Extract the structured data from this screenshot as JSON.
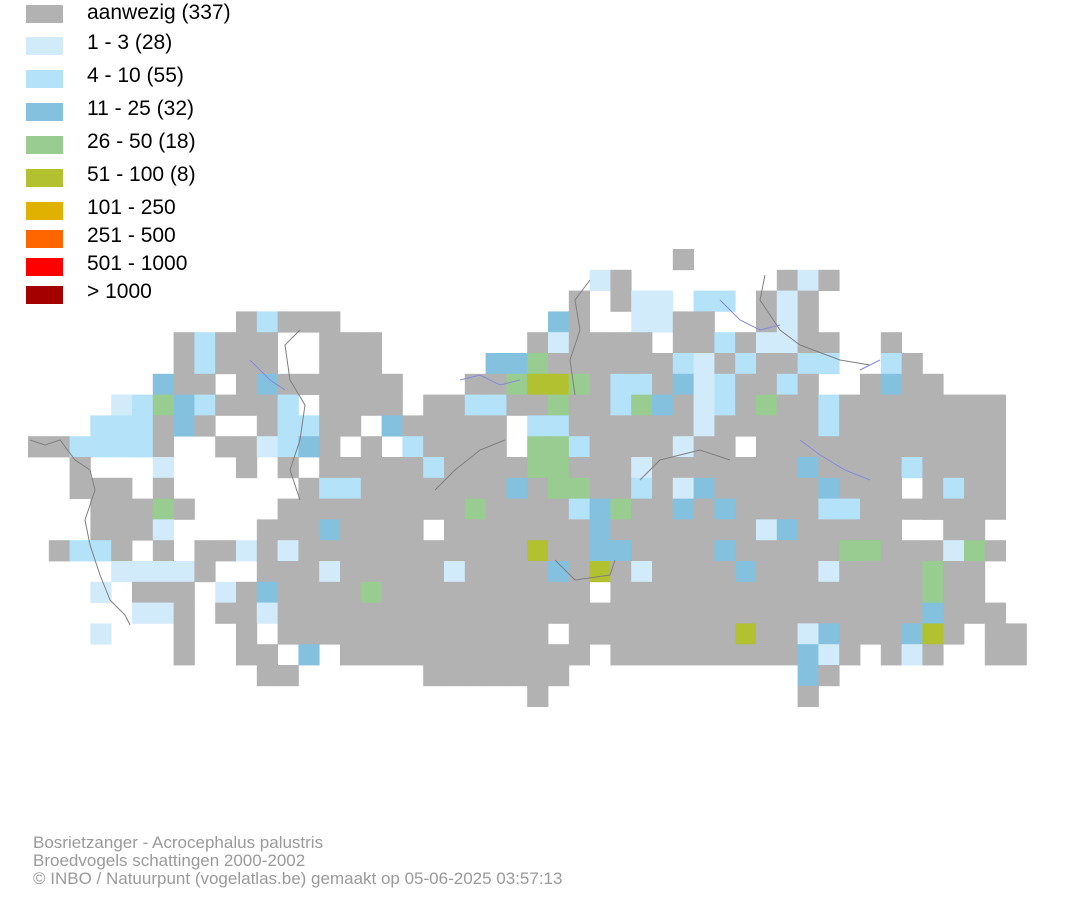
{
  "legend": [
    {
      "label": "aanwezig (337)",
      "color": "#b2b2b2"
    },
    {
      "label": "1 - 3 (28)",
      "color": "#d2ebfb"
    },
    {
      "label": "4 - 10 (55)",
      "color": "#b3e2f9"
    },
    {
      "label": "11 - 25 (32)",
      "color": "#83c1df"
    },
    {
      "label": "26 - 50 (18)",
      "color": "#98cc90"
    },
    {
      "label": "51 - 100 (8)",
      "color": "#b1c12f"
    },
    {
      "label": "101 - 250",
      "color": "#e0b100"
    },
    {
      "label": "251 - 500",
      "color": "#ff6600"
    },
    {
      "label": "501 - 1000",
      "color": "#ff0000"
    },
    {
      "label": "> 1000",
      "color": "#a50000"
    }
  ],
  "footer": {
    "species": "Bosrietzanger - Acrocephalus palustris",
    "dataset": "Broedvogels schattingen 2000-2002",
    "credit": "© INBO / Natuurpunt (vogelatlas.be) gemaakt op 05-06-2025 03:57:13"
  }
}
